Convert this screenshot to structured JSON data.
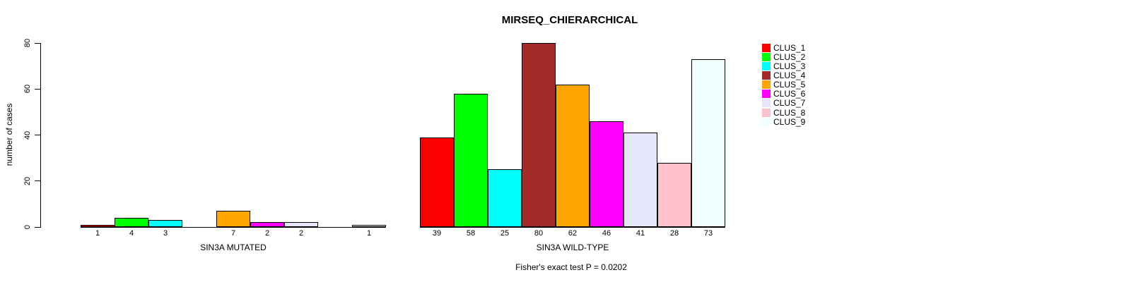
{
  "chart_data": {
    "type": "bar",
    "title": "MIRSEQ_CHIERARCHICAL",
    "ylabel": "number of cases",
    "xlabel": "",
    "ylim": [
      0,
      80
    ],
    "yticks": [
      0,
      20,
      40,
      60,
      80
    ],
    "categories": [
      "CLUS_1",
      "CLUS_2",
      "CLUS_3",
      "CLUS_4",
      "CLUS_5",
      "CLUS_6",
      "CLUS_7",
      "CLUS_8",
      "CLUS_9"
    ],
    "colors": [
      "#FF0000",
      "#00FF00",
      "#00FFFF",
      "#A52A2A",
      "#FFA500",
      "#FF00FF",
      "#E6E6FA",
      "#FFC0CB",
      "#F0FFFF"
    ],
    "series": [
      {
        "name": "SIN3A MUTATED",
        "values": [
          1,
          4,
          3,
          0,
          7,
          2,
          2,
          0,
          1
        ]
      },
      {
        "name": "SIN3A WILD-TYPE",
        "values": [
          39,
          58,
          25,
          80,
          62,
          46,
          41,
          28,
          73
        ]
      }
    ],
    "bar_value_labels_shown": true,
    "legend_position": "right",
    "grid": false,
    "annotation": "Fisher's exact test P = 0.0202"
  }
}
